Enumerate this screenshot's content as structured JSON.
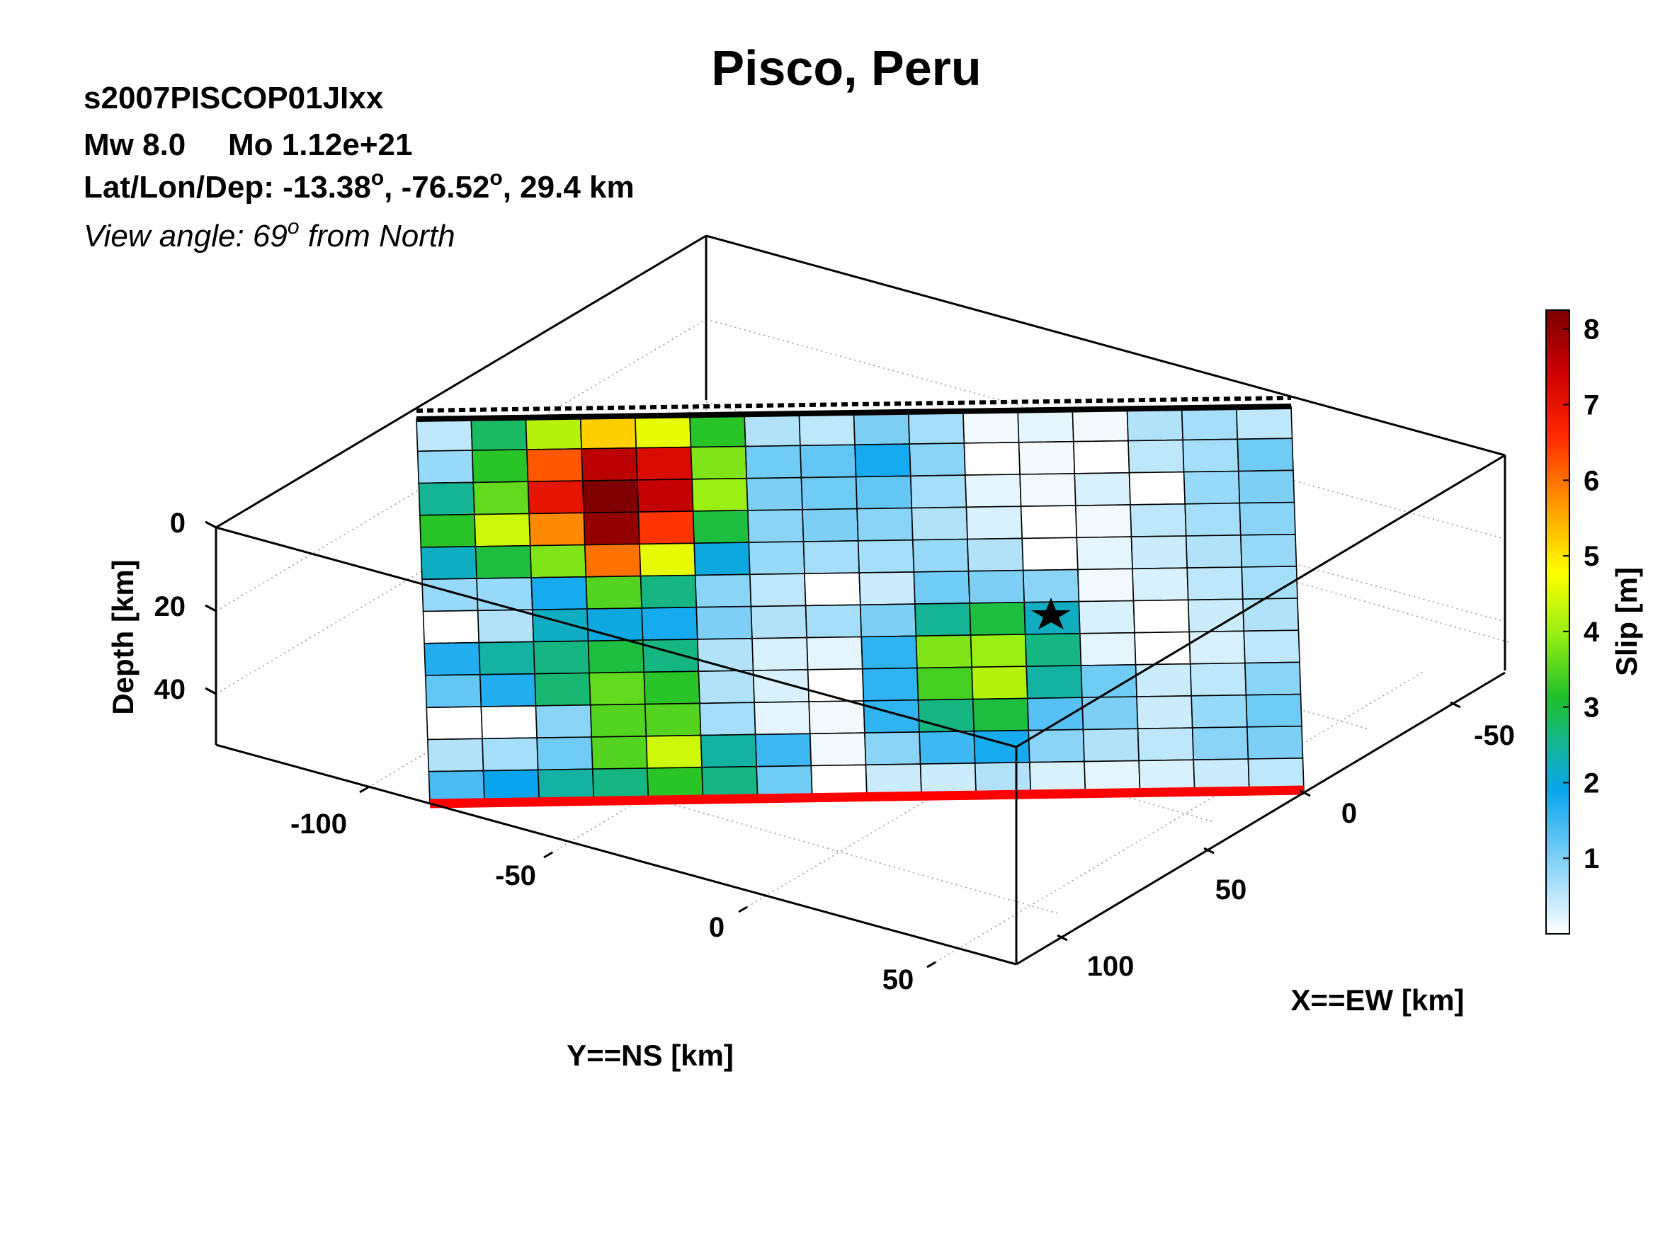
{
  "chart_data": {
    "type": "heatmap",
    "title": "Pisco, Peru",
    "header": {
      "event_id": "s2007PISCOP01JIxx",
      "magnitude": "Mw 8.0",
      "moment": "Mo 1.12e+21",
      "location_prefix": "Lat/Lon/Dep: -13.38",
      "location_mid": ", -76.52",
      "location_suffix": ", 29.4 km",
      "degree_symbol": "o",
      "view_prefix": "View angle:  69",
      "view_suffix": " from North"
    },
    "zlabel": "Depth [km]",
    "ylabel": "Y==NS [km]",
    "xlabel": "X==EW [km]",
    "z_ticks": [
      "0",
      "20",
      "40"
    ],
    "y_ticks": [
      "-100",
      "-50",
      "0",
      "50"
    ],
    "x_ticks": [
      "-50",
      "0",
      "50",
      "100"
    ],
    "colorbar": {
      "label": "Slip [m]",
      "ticks": [
        "1",
        "2",
        "3",
        "4",
        "5",
        "6",
        "7",
        "8"
      ],
      "range": [
        0,
        8.25
      ],
      "colormap": "jet-white"
    },
    "grid": true,
    "hypocenter": {
      "row": 6,
      "col": 11
    },
    "grid_size": {
      "rows": 12,
      "cols": 16
    },
    "slip": [
      [
        0.5,
        2.8,
        4.2,
        5.2,
        4.6,
        3.2,
        0.6,
        0.5,
        1.0,
        0.7,
        0.1,
        0.2,
        0.1,
        0.6,
        0.7,
        0.5
      ],
      [
        0.8,
        3.2,
        6.2,
        7.6,
        7.2,
        3.8,
        1.1,
        1.2,
        1.8,
        0.9,
        0.0,
        0.1,
        0.0,
        0.5,
        0.7,
        1.1
      ],
      [
        2.5,
        3.6,
        7.0,
        8.2,
        7.5,
        4.0,
        1.0,
        1.1,
        1.2,
        0.7,
        0.2,
        0.1,
        0.3,
        0.0,
        0.8,
        1.0
      ],
      [
        3.2,
        4.4,
        5.8,
        8.0,
        6.5,
        3.0,
        0.9,
        1.0,
        0.9,
        0.6,
        0.3,
        0.0,
        0.1,
        0.5,
        0.7,
        0.9
      ],
      [
        2.2,
        3.0,
        3.8,
        6.0,
        4.6,
        2.0,
        0.8,
        0.7,
        0.7,
        0.8,
        0.6,
        0.0,
        0.2,
        0.4,
        0.6,
        0.8
      ],
      [
        0.8,
        0.8,
        1.8,
        3.5,
        2.6,
        0.9,
        0.5,
        0.0,
        0.4,
        1.1,
        1.0,
        0.9,
        0.1,
        0.3,
        0.5,
        0.7
      ],
      [
        0.0,
        0.6,
        2.2,
        2.0,
        1.8,
        1.0,
        0.6,
        0.7,
        1.0,
        2.5,
        3.0,
        2.2,
        0.3,
        0.0,
        0.4,
        0.6
      ],
      [
        1.7,
        2.4,
        2.6,
        3.0,
        2.6,
        0.6,
        0.3,
        0.2,
        1.6,
        3.8,
        4.0,
        2.6,
        0.2,
        0.0,
        0.3,
        0.5
      ],
      [
        1.2,
        1.7,
        2.7,
        3.6,
        3.2,
        0.6,
        0.3,
        0.0,
        1.6,
        3.4,
        4.2,
        2.4,
        1.1,
        0.4,
        0.5,
        0.9
      ],
      [
        0.0,
        0.0,
        0.9,
        3.5,
        3.5,
        0.7,
        0.2,
        0.1,
        1.6,
        2.6,
        3.0,
        1.3,
        1.0,
        0.4,
        0.8,
        1.1
      ],
      [
        0.6,
        0.7,
        1.1,
        3.5,
        4.4,
        2.4,
        1.5,
        0.1,
        0.9,
        1.5,
        1.8,
        0.9,
        0.6,
        0.5,
        0.9,
        1.0
      ],
      [
        1.4,
        1.9,
        2.4,
        2.6,
        3.2,
        2.6,
        1.1,
        0.0,
        0.4,
        0.4,
        0.6,
        0.3,
        0.2,
        0.3,
        0.4,
        0.5
      ]
    ]
  }
}
